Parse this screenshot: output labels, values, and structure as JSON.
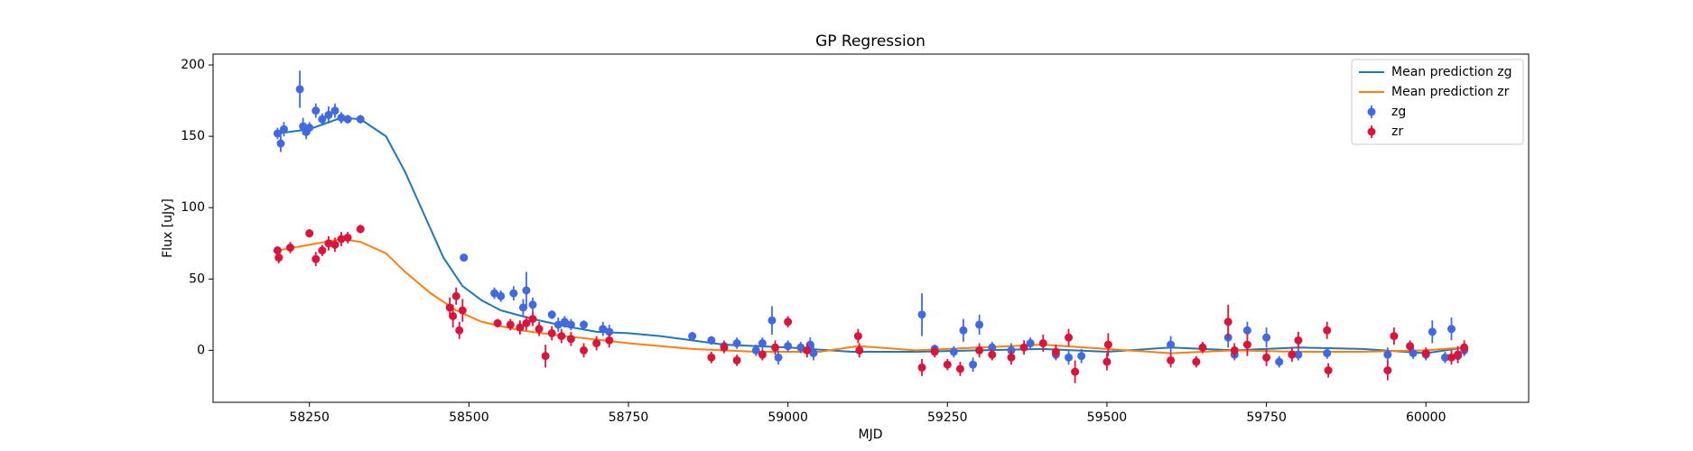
{
  "chart_data": {
    "type": "line",
    "title": "GP Regression",
    "xlabel": "MJD",
    "ylabel": "Flux [uJy]",
    "xlim": [
      58099,
      60161
    ],
    "xticks": [
      58250,
      58500,
      58750,
      59000,
      59250,
      59500,
      59750,
      60000
    ],
    "ylim": [
      -36.4,
      207.6
    ],
    "yticks": [
      0,
      50,
      100,
      150,
      200
    ],
    "grid": false,
    "legend": "upper right",
    "series": [
      {
        "name": "Mean prediction zg",
        "type": "line",
        "color": "#1f77b4",
        "x": [
          58200,
          58250,
          58300,
          58330,
          58370,
          58400,
          58430,
          58460,
          58490,
          58520,
          58550,
          58600,
          58650,
          58700,
          58750,
          58800,
          58850,
          58900,
          59000,
          59100,
          59200,
          59300,
          59400,
          59500,
          59600,
          59700,
          59800,
          59900,
          60000,
          60060
        ],
        "values": [
          152,
          155,
          163,
          162,
          150,
          125,
          95,
          65,
          45,
          35,
          28,
          22,
          17,
          13,
          12,
          10,
          7,
          4,
          2,
          -1,
          -1,
          0,
          1,
          -1,
          2,
          0,
          2,
          1,
          -2,
          2
        ]
      },
      {
        "name": "Mean prediction zr",
        "type": "line",
        "color": "#ff7f0e",
        "x": [
          58200,
          58250,
          58300,
          58330,
          58370,
          58400,
          58440,
          58480,
          58520,
          58580,
          58650,
          58750,
          58850,
          58950,
          59050,
          59110,
          59200,
          59300,
          59400,
          59500,
          59600,
          59700,
          59800,
          59900,
          60000,
          60060
        ],
        "values": [
          70,
          74,
          78,
          76,
          68,
          55,
          40,
          28,
          20,
          14,
          10,
          5,
          1,
          -1,
          -1,
          3,
          0,
          2,
          4,
          1,
          -2,
          0,
          -1,
          -1,
          0,
          2
        ]
      },
      {
        "name": "zg",
        "type": "errorbar",
        "color": "#4169e1",
        "x": [
          58200,
          58205,
          58210,
          58235,
          58240,
          58245,
          58250,
          58260,
          58270,
          58280,
          58290,
          58300,
          58310,
          58330,
          58492,
          58540,
          58550,
          58570,
          58585,
          58590,
          58600,
          58630,
          58640,
          58650,
          58660,
          58680,
          58710,
          58720,
          58850,
          58880,
          58900,
          58920,
          58950,
          58960,
          58975,
          58985,
          59000,
          59020,
          59035,
          59040,
          59210,
          59230,
          59260,
          59275,
          59290,
          59300,
          59320,
          59350,
          59380,
          59420,
          59440,
          59460,
          59600,
          59690,
          59700,
          59720,
          59750,
          59770,
          59800,
          59845,
          59940,
          59980,
          60000,
          60010,
          60030,
          60040,
          60050,
          60060
        ],
        "values": [
          152,
          145,
          155,
          183,
          157,
          153,
          156,
          168,
          162,
          165,
          168,
          163,
          162,
          162,
          65,
          40,
          38,
          40,
          30,
          42,
          32,
          25,
          18,
          20,
          18,
          18,
          15,
          13,
          10,
          7,
          3,
          5,
          0,
          5,
          21,
          -5,
          3,
          2,
          4,
          -2,
          25,
          1,
          -1,
          14,
          -10,
          18,
          2,
          0,
          5,
          -3,
          -5,
          -4,
          4,
          9,
          -3,
          14,
          9,
          -8,
          -3,
          -2,
          -3,
          -2,
          -3,
          13,
          -5,
          15,
          -4,
          0
        ],
        "errors": [
          4,
          6,
          5,
          13,
          6,
          5,
          4,
          5,
          4,
          6,
          5,
          4,
          3,
          3,
          2,
          4,
          4,
          5,
          6,
          13,
          5,
          3,
          5,
          4,
          4,
          3,
          5,
          5,
          3,
          3,
          4,
          4,
          4,
          4,
          10,
          5,
          4,
          4,
          5,
          5,
          15,
          3,
          4,
          8,
          5,
          7,
          4,
          5,
          4,
          4,
          5,
          5,
          6,
          7,
          4,
          6,
          7,
          4,
          4,
          4,
          5,
          4,
          4,
          8,
          4,
          8,
          5,
          4
        ]
      },
      {
        "name": "zr",
        "type": "errorbar",
        "color": "#dc143c",
        "x": [
          58200,
          58202,
          58220,
          58250,
          58260,
          58270,
          58280,
          58290,
          58300,
          58310,
          58330,
          58470,
          58475,
          58480,
          58485,
          58490,
          58545,
          58565,
          58580,
          58590,
          58600,
          58610,
          58620,
          58630,
          58645,
          58660,
          58680,
          58700,
          58720,
          58880,
          58900,
          58920,
          58960,
          58980,
          59000,
          59030,
          59110,
          59112,
          59210,
          59230,
          59250,
          59270,
          59300,
          59320,
          59350,
          59370,
          59400,
          59420,
          59440,
          59450,
          59500,
          59502,
          59600,
          59640,
          59650,
          59690,
          59700,
          59720,
          59750,
          59790,
          59800,
          59845,
          59847,
          59940,
          59950,
          59975,
          60000,
          60040,
          60050,
          60060
        ],
        "values": [
          70,
          65,
          72,
          82,
          64,
          70,
          75,
          74,
          78,
          79,
          85,
          30,
          24,
          38,
          14,
          28,
          19,
          18,
          16,
          19,
          22,
          15,
          -4,
          12,
          10,
          8,
          0,
          5,
          7,
          -5,
          2,
          -7,
          -3,
          2,
          20,
          0,
          10,
          0,
          -12,
          -1,
          -10,
          -13,
          0,
          -3,
          -5,
          2,
          5,
          -1,
          9,
          -15,
          -8,
          4,
          -7,
          -8,
          2,
          20,
          0,
          4,
          -5,
          -3,
          7,
          14,
          -14,
          -14,
          10,
          3,
          -2,
          -5,
          -3,
          2
        ],
        "errors": [
          3,
          4,
          4,
          3,
          5,
          4,
          5,
          5,
          5,
          4,
          3,
          7,
          8,
          6,
          6,
          8,
          3,
          4,
          5,
          5,
          5,
          5,
          8,
          5,
          5,
          5,
          5,
          5,
          5,
          4,
          4,
          4,
          4,
          5,
          4,
          5,
          5,
          5,
          6,
          4,
          4,
          5,
          5,
          4,
          5,
          5,
          6,
          5,
          6,
          8,
          6,
          8,
          5,
          4,
          4,
          12,
          5,
          8,
          6,
          5,
          6,
          6,
          5,
          7,
          6,
          4,
          4,
          5,
          6,
          5
        ]
      }
    ]
  }
}
